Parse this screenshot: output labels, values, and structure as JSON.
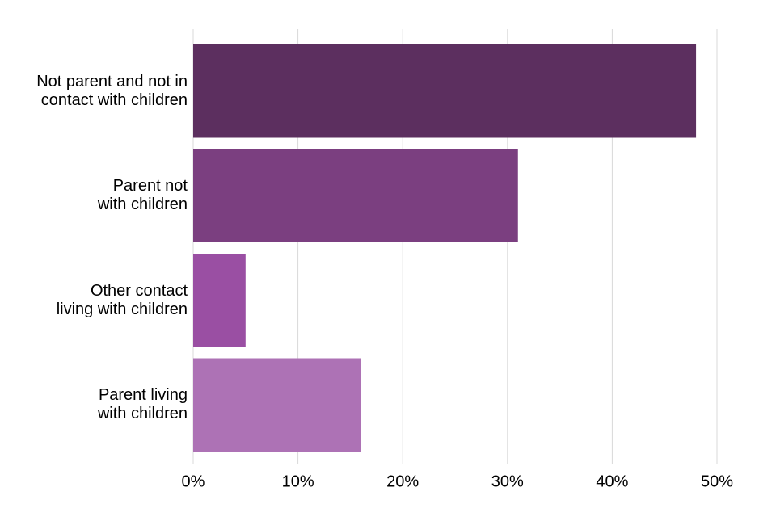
{
  "chart_data": {
    "type": "bar",
    "orientation": "horizontal",
    "categories": [
      "Not parent and not in\ncontact with children",
      "Parent not\nwith children",
      "Other contact\nliving with children",
      "Parent living\nwith children"
    ],
    "values": [
      48,
      31,
      5,
      16
    ],
    "colors": [
      "#5c2f5f",
      "#7b3f80",
      "#9a4fa3",
      "#ad72b5"
    ],
    "xlim": [
      0,
      50
    ],
    "xticks": [
      {
        "value": 0,
        "label": "0%"
      },
      {
        "value": 10,
        "label": "10%"
      },
      {
        "value": 20,
        "label": "20%"
      },
      {
        "value": 30,
        "label": "30%"
      },
      {
        "value": 40,
        "label": "40%"
      },
      {
        "value": 50,
        "label": "50%"
      }
    ],
    "grid": true
  }
}
